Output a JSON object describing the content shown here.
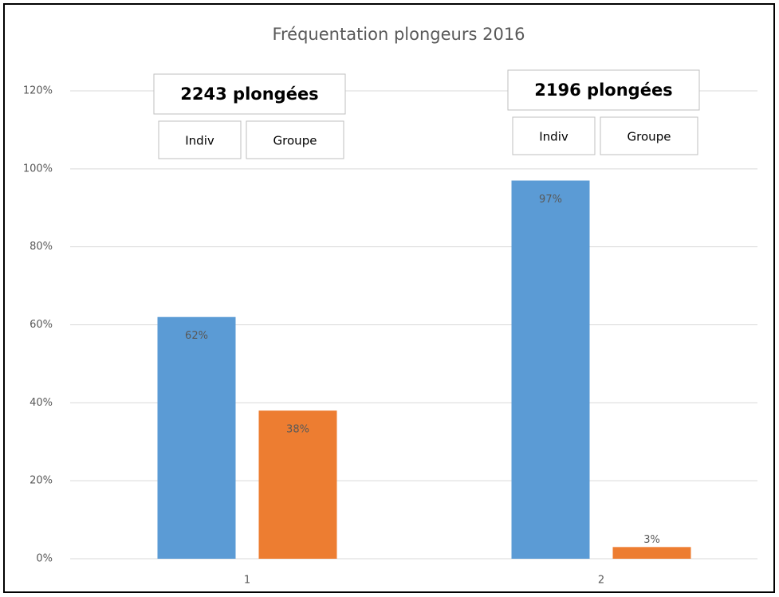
{
  "chart_data": {
    "type": "bar",
    "title": "Fréquentation plongeurs 2016",
    "categories": [
      "1",
      "2"
    ],
    "series": [
      {
        "name": "Indiv",
        "color": "#5b9bd5",
        "values": [
          62,
          97
        ],
        "value_labels": [
          "62%",
          "97%"
        ]
      },
      {
        "name": "Groupe",
        "color": "#ed7d31",
        "values": [
          38,
          3
        ],
        "value_labels": [
          "38%",
          "3%"
        ]
      }
    ],
    "annotations": [
      "2243 plongées",
      "2196 plongées"
    ],
    "ylim": [
      0,
      120
    ],
    "yticks": [
      {
        "value": 0,
        "label": "0%"
      },
      {
        "value": 20,
        "label": "20%"
      },
      {
        "value": 40,
        "label": "40%"
      },
      {
        "value": 60,
        "label": "60%"
      },
      {
        "value": 80,
        "label": "80%"
      },
      {
        "value": 100,
        "label": "100%"
      },
      {
        "value": 120,
        "label": "120%"
      }
    ],
    "grid": true
  }
}
